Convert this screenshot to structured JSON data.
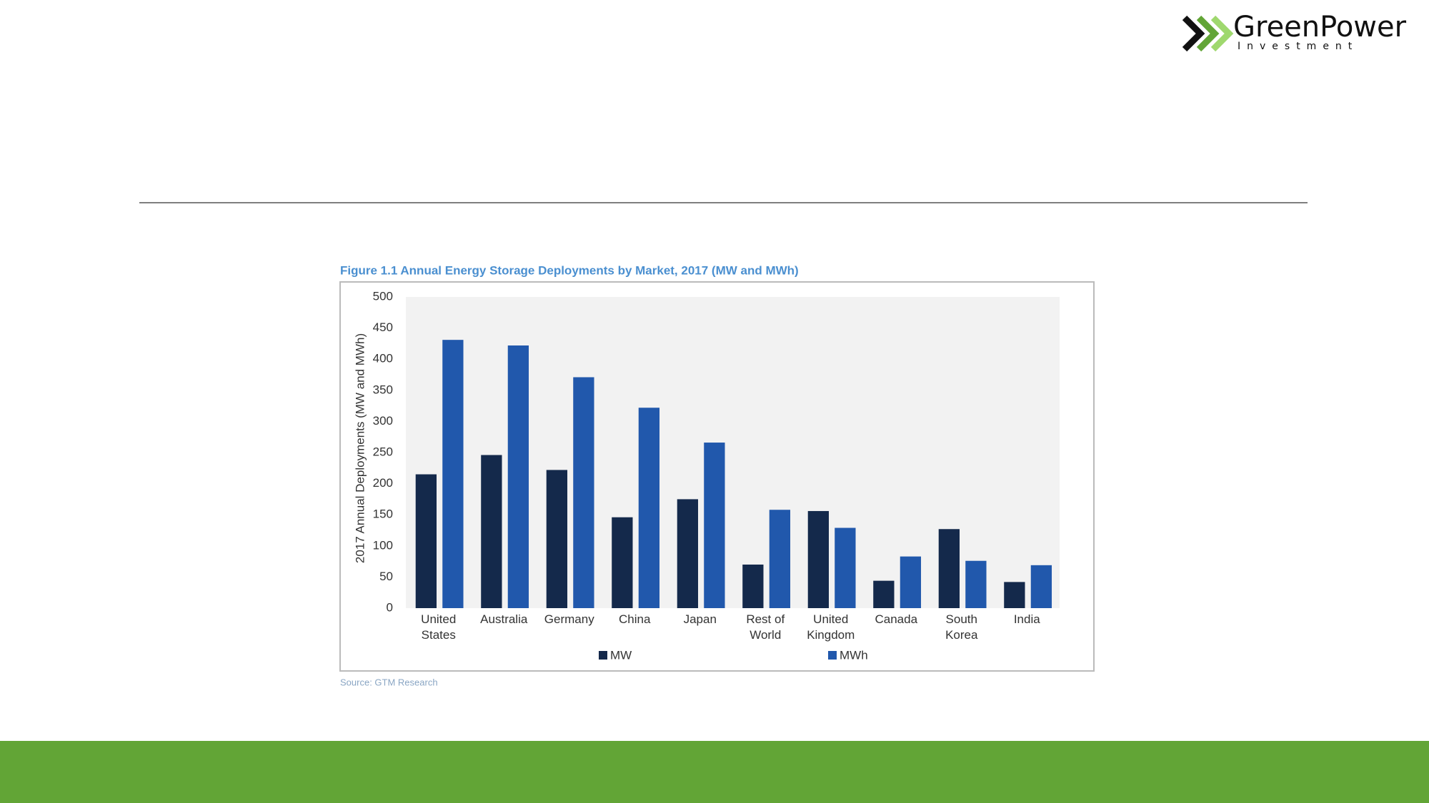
{
  "logo": {
    "name": "GreenPower",
    "tagline": "Investment"
  },
  "chart_data": {
    "type": "bar",
    "title": "Figure 1.1 Annual Energy Storage Deployments by Market, 2017  (MW and MWh)",
    "y_label": "2017 Annual Deployments (MW and MWh)",
    "categories": [
      "United States",
      "Australia",
      "Germany",
      "China",
      "Japan",
      "Rest of World",
      "United Kingdom",
      "Canada",
      "South Korea",
      "India"
    ],
    "series": [
      {
        "name": "MW",
        "color": "#14294b",
        "values": [
          215,
          246,
          222,
          146,
          175,
          70,
          156,
          44,
          127,
          42
        ]
      },
      {
        "name": "MWh",
        "color": "#2158ac",
        "values": [
          431,
          422,
          371,
          322,
          266,
          158,
          129,
          83,
          76,
          69
        ]
      }
    ],
    "ylim": [
      0,
      500
    ],
    "yticks": [
      0,
      50,
      100,
      150,
      200,
      250,
      300,
      350,
      400,
      450,
      500
    ],
    "grid": false,
    "legend": "bottom",
    "source": "Source: GTM Research"
  }
}
